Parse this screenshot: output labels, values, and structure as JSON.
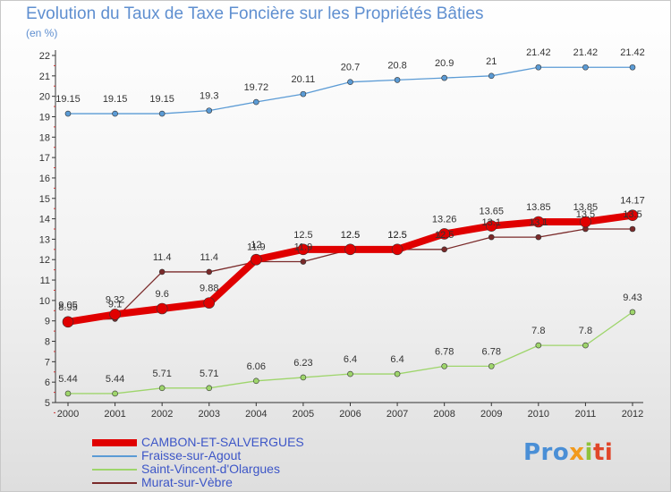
{
  "title": "Evolution du Taux de Taxe Foncière sur les Propriétés Bâties",
  "unit": "(en %)",
  "logo": {
    "p1": "Pro",
    "x": "x",
    "p3": "i",
    "p4": "ti",
    "brand_colors": [
      "#4a8fd6",
      "#f29a1c",
      "#8fc23a",
      "#e0462a"
    ]
  },
  "chart_data": {
    "type": "line",
    "title": "Evolution du Taux de Taxe Foncière sur les Propriétés Bâties",
    "ylabel": "(en %)",
    "xlabel": "",
    "x": [
      "2000",
      "2001",
      "2002",
      "2003",
      "2004",
      "2005",
      "2006",
      "2007",
      "2008",
      "2009",
      "2010",
      "2011",
      "2012"
    ],
    "ylim": [
      5,
      22
    ],
    "yticks": [
      5,
      6,
      7,
      8,
      9,
      10,
      11,
      12,
      13,
      14,
      15,
      16,
      17,
      18,
      19,
      20,
      21,
      22
    ],
    "grid": false,
    "legend": "bottom-left",
    "series": [
      {
        "name": "Fraisse-sur-Agout",
        "color": "#5b9bd5",
        "values": [
          19.15,
          19.15,
          19.15,
          19.3,
          19.72,
          20.11,
          20.7,
          20.8,
          20.9,
          21,
          21.42,
          21.42,
          21.42
        ],
        "labels": [
          "19.15",
          "19.15",
          "19.15",
          "19.3",
          "19.72",
          "20.11",
          "20.7",
          "20.8",
          "20.9",
          "21",
          "21.42",
          "21.42",
          "21.42"
        ]
      },
      {
        "name": "Saint-Vincent-d'Olargues",
        "color": "#9ed56b",
        "values": [
          5.44,
          5.44,
          5.71,
          5.71,
          6.06,
          6.23,
          6.4,
          6.4,
          6.78,
          6.78,
          7.8,
          7.8,
          9.43
        ],
        "labels": [
          "5.44",
          "5.44",
          "5.71",
          "5.71",
          "6.06",
          "6.23",
          "6.4",
          "6.4",
          "6.78",
          "6.78",
          "7.8",
          "7.8",
          "9.43"
        ]
      },
      {
        "name": "Murat-sur-Vèbre",
        "color": "#7a2a2a",
        "values": [
          9.05,
          9.1,
          11.4,
          11.4,
          11.9,
          11.9,
          12.5,
          12.5,
          12.5,
          13.1,
          13.1,
          13.5,
          13.5
        ],
        "labels": [
          "9.05",
          "9.1",
          "11.4",
          "11.4",
          "11.9",
          "11.9",
          "12.5",
          "12.5",
          "12.5",
          "13.1",
          "13.1",
          "13.5",
          "13.5"
        ]
      },
      {
        "name": "CAMBON-ET-SALVERGUES",
        "color": "#e00000",
        "values": [
          8.95,
          9.32,
          9.6,
          9.88,
          12,
          12.5,
          12.5,
          12.5,
          13.26,
          13.65,
          13.85,
          13.85,
          14.17
        ],
        "labels": [
          "8.95",
          "9.32",
          "9.6",
          "9.88",
          "12",
          "12.5",
          "12.5",
          "12.5",
          "13.26",
          "13.65",
          "13.85",
          "13.85",
          "14.17"
        ]
      }
    ],
    "legend_order": [
      "CAMBON-ET-SALVERGUES",
      "Fraisse-sur-Agout",
      "Saint-Vincent-d'Olargues",
      "Murat-sur-Vèbre"
    ]
  }
}
